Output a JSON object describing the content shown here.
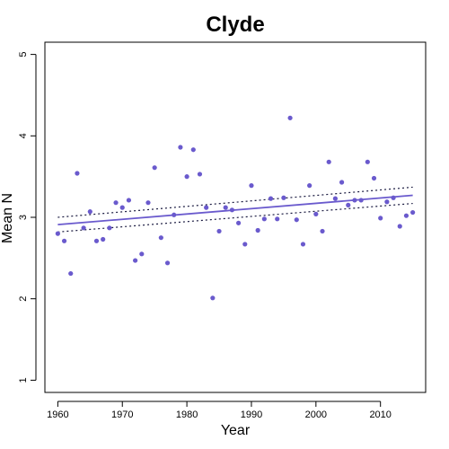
{
  "chart_data": {
    "type": "scatter",
    "title": "Clyde",
    "xlabel": "Year",
    "ylabel": "Mean N",
    "xlim": [
      1958,
      2017
    ],
    "ylim": [
      0.85,
      5.15
    ],
    "x_ticks": [
      1960,
      1970,
      1980,
      1990,
      2000,
      2010
    ],
    "y_ticks": [
      1,
      2,
      3,
      4,
      5
    ],
    "grid": false,
    "point_color": "#6a5acd",
    "line_color": "#6a5acd",
    "ci_color": "#1a1a40",
    "points": [
      {
        "x": 1960,
        "y": 2.8
      },
      {
        "x": 1961,
        "y": 2.71
      },
      {
        "x": 1962,
        "y": 2.31
      },
      {
        "x": 1963,
        "y": 3.54
      },
      {
        "x": 1964,
        "y": 2.87
      },
      {
        "x": 1965,
        "y": 3.07
      },
      {
        "x": 1966,
        "y": 2.71
      },
      {
        "x": 1967,
        "y": 2.73
      },
      {
        "x": 1968,
        "y": 2.87
      },
      {
        "x": 1969,
        "y": 3.18
      },
      {
        "x": 1970,
        "y": 3.12
      },
      {
        "x": 1971,
        "y": 3.21
      },
      {
        "x": 1972,
        "y": 2.47
      },
      {
        "x": 1973,
        "y": 2.55
      },
      {
        "x": 1974,
        "y": 3.18
      },
      {
        "x": 1975,
        "y": 3.61
      },
      {
        "x": 1976,
        "y": 2.75
      },
      {
        "x": 1977,
        "y": 2.44
      },
      {
        "x": 1978,
        "y": 3.03
      },
      {
        "x": 1979,
        "y": 3.86
      },
      {
        "x": 1980,
        "y": 3.5
      },
      {
        "x": 1981,
        "y": 3.83
      },
      {
        "x": 1982,
        "y": 3.53
      },
      {
        "x": 1983,
        "y": 3.12
      },
      {
        "x": 1984,
        "y": 2.01
      },
      {
        "x": 1985,
        "y": 2.83
      },
      {
        "x": 1986,
        "y": 3.12
      },
      {
        "x": 1987,
        "y": 3.09
      },
      {
        "x": 1988,
        "y": 2.93
      },
      {
        "x": 1989,
        "y": 2.67
      },
      {
        "x": 1990,
        "y": 3.39
      },
      {
        "x": 1991,
        "y": 2.84
      },
      {
        "x": 1992,
        "y": 2.98
      },
      {
        "x": 1993,
        "y": 3.23
      },
      {
        "x": 1994,
        "y": 2.98
      },
      {
        "x": 1995,
        "y": 3.24
      },
      {
        "x": 1996,
        "y": 4.22
      },
      {
        "x": 1997,
        "y": 2.97
      },
      {
        "x": 1998,
        "y": 2.67
      },
      {
        "x": 1999,
        "y": 3.39
      },
      {
        "x": 2000,
        "y": 3.04
      },
      {
        "x": 2001,
        "y": 2.83
      },
      {
        "x": 2002,
        "y": 3.68
      },
      {
        "x": 2003,
        "y": 3.23
      },
      {
        "x": 2004,
        "y": 3.43
      },
      {
        "x": 2005,
        "y": 3.15
      },
      {
        "x": 2006,
        "y": 3.21
      },
      {
        "x": 2007,
        "y": 3.21
      },
      {
        "x": 2008,
        "y": 3.68
      },
      {
        "x": 2009,
        "y": 3.48
      },
      {
        "x": 2010,
        "y": 2.99
      },
      {
        "x": 2011,
        "y": 3.19
      },
      {
        "x": 2012,
        "y": 3.24
      },
      {
        "x": 2013,
        "y": 2.89
      },
      {
        "x": 2014,
        "y": 3.02
      },
      {
        "x": 2015,
        "y": 3.06
      }
    ],
    "trend": {
      "x": [
        1960,
        2015
      ],
      "y": [
        2.91,
        3.27
      ]
    },
    "ci_upper": {
      "x": [
        1960,
        2015
      ],
      "y": [
        3.0,
        3.37
      ]
    },
    "ci_lower": {
      "x": [
        1960,
        2015
      ],
      "y": [
        2.82,
        3.17
      ]
    }
  }
}
